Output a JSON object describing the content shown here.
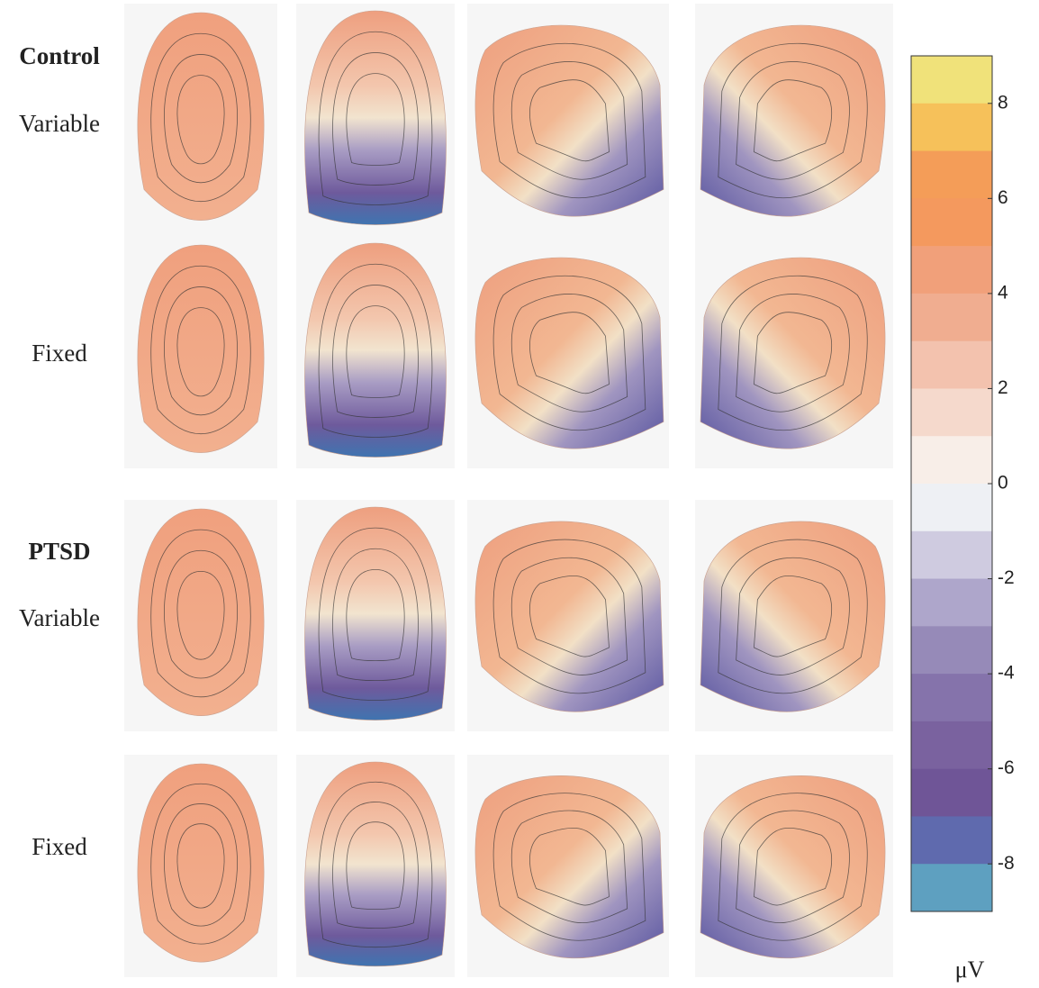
{
  "groups": [
    {
      "title": "Control",
      "rows": [
        "Variable",
        "Fixed"
      ]
    },
    {
      "title": "PTSD",
      "rows": [
        "Variable",
        "Fixed"
      ]
    }
  ],
  "colorbar": {
    "lim": [
      -9,
      9
    ],
    "ticks": [
      -8,
      -6,
      -4,
      -2,
      0,
      2,
      4,
      6,
      8
    ],
    "unit": "μV",
    "colors": [
      "#f0e27a",
      "#f6c15a",
      "#f49d58",
      "#f4995e",
      "#f1a07a",
      "#f0ad90",
      "#f3c2ae",
      "#f5d9cc",
      "#f8eee8",
      "#eef0f4",
      "#cfcbe0",
      "#aea6cb",
      "#968ab8",
      "#8573ab",
      "#7a629f",
      "#6f5597",
      "#5f6aae",
      "#5ea0c0"
    ]
  }
}
